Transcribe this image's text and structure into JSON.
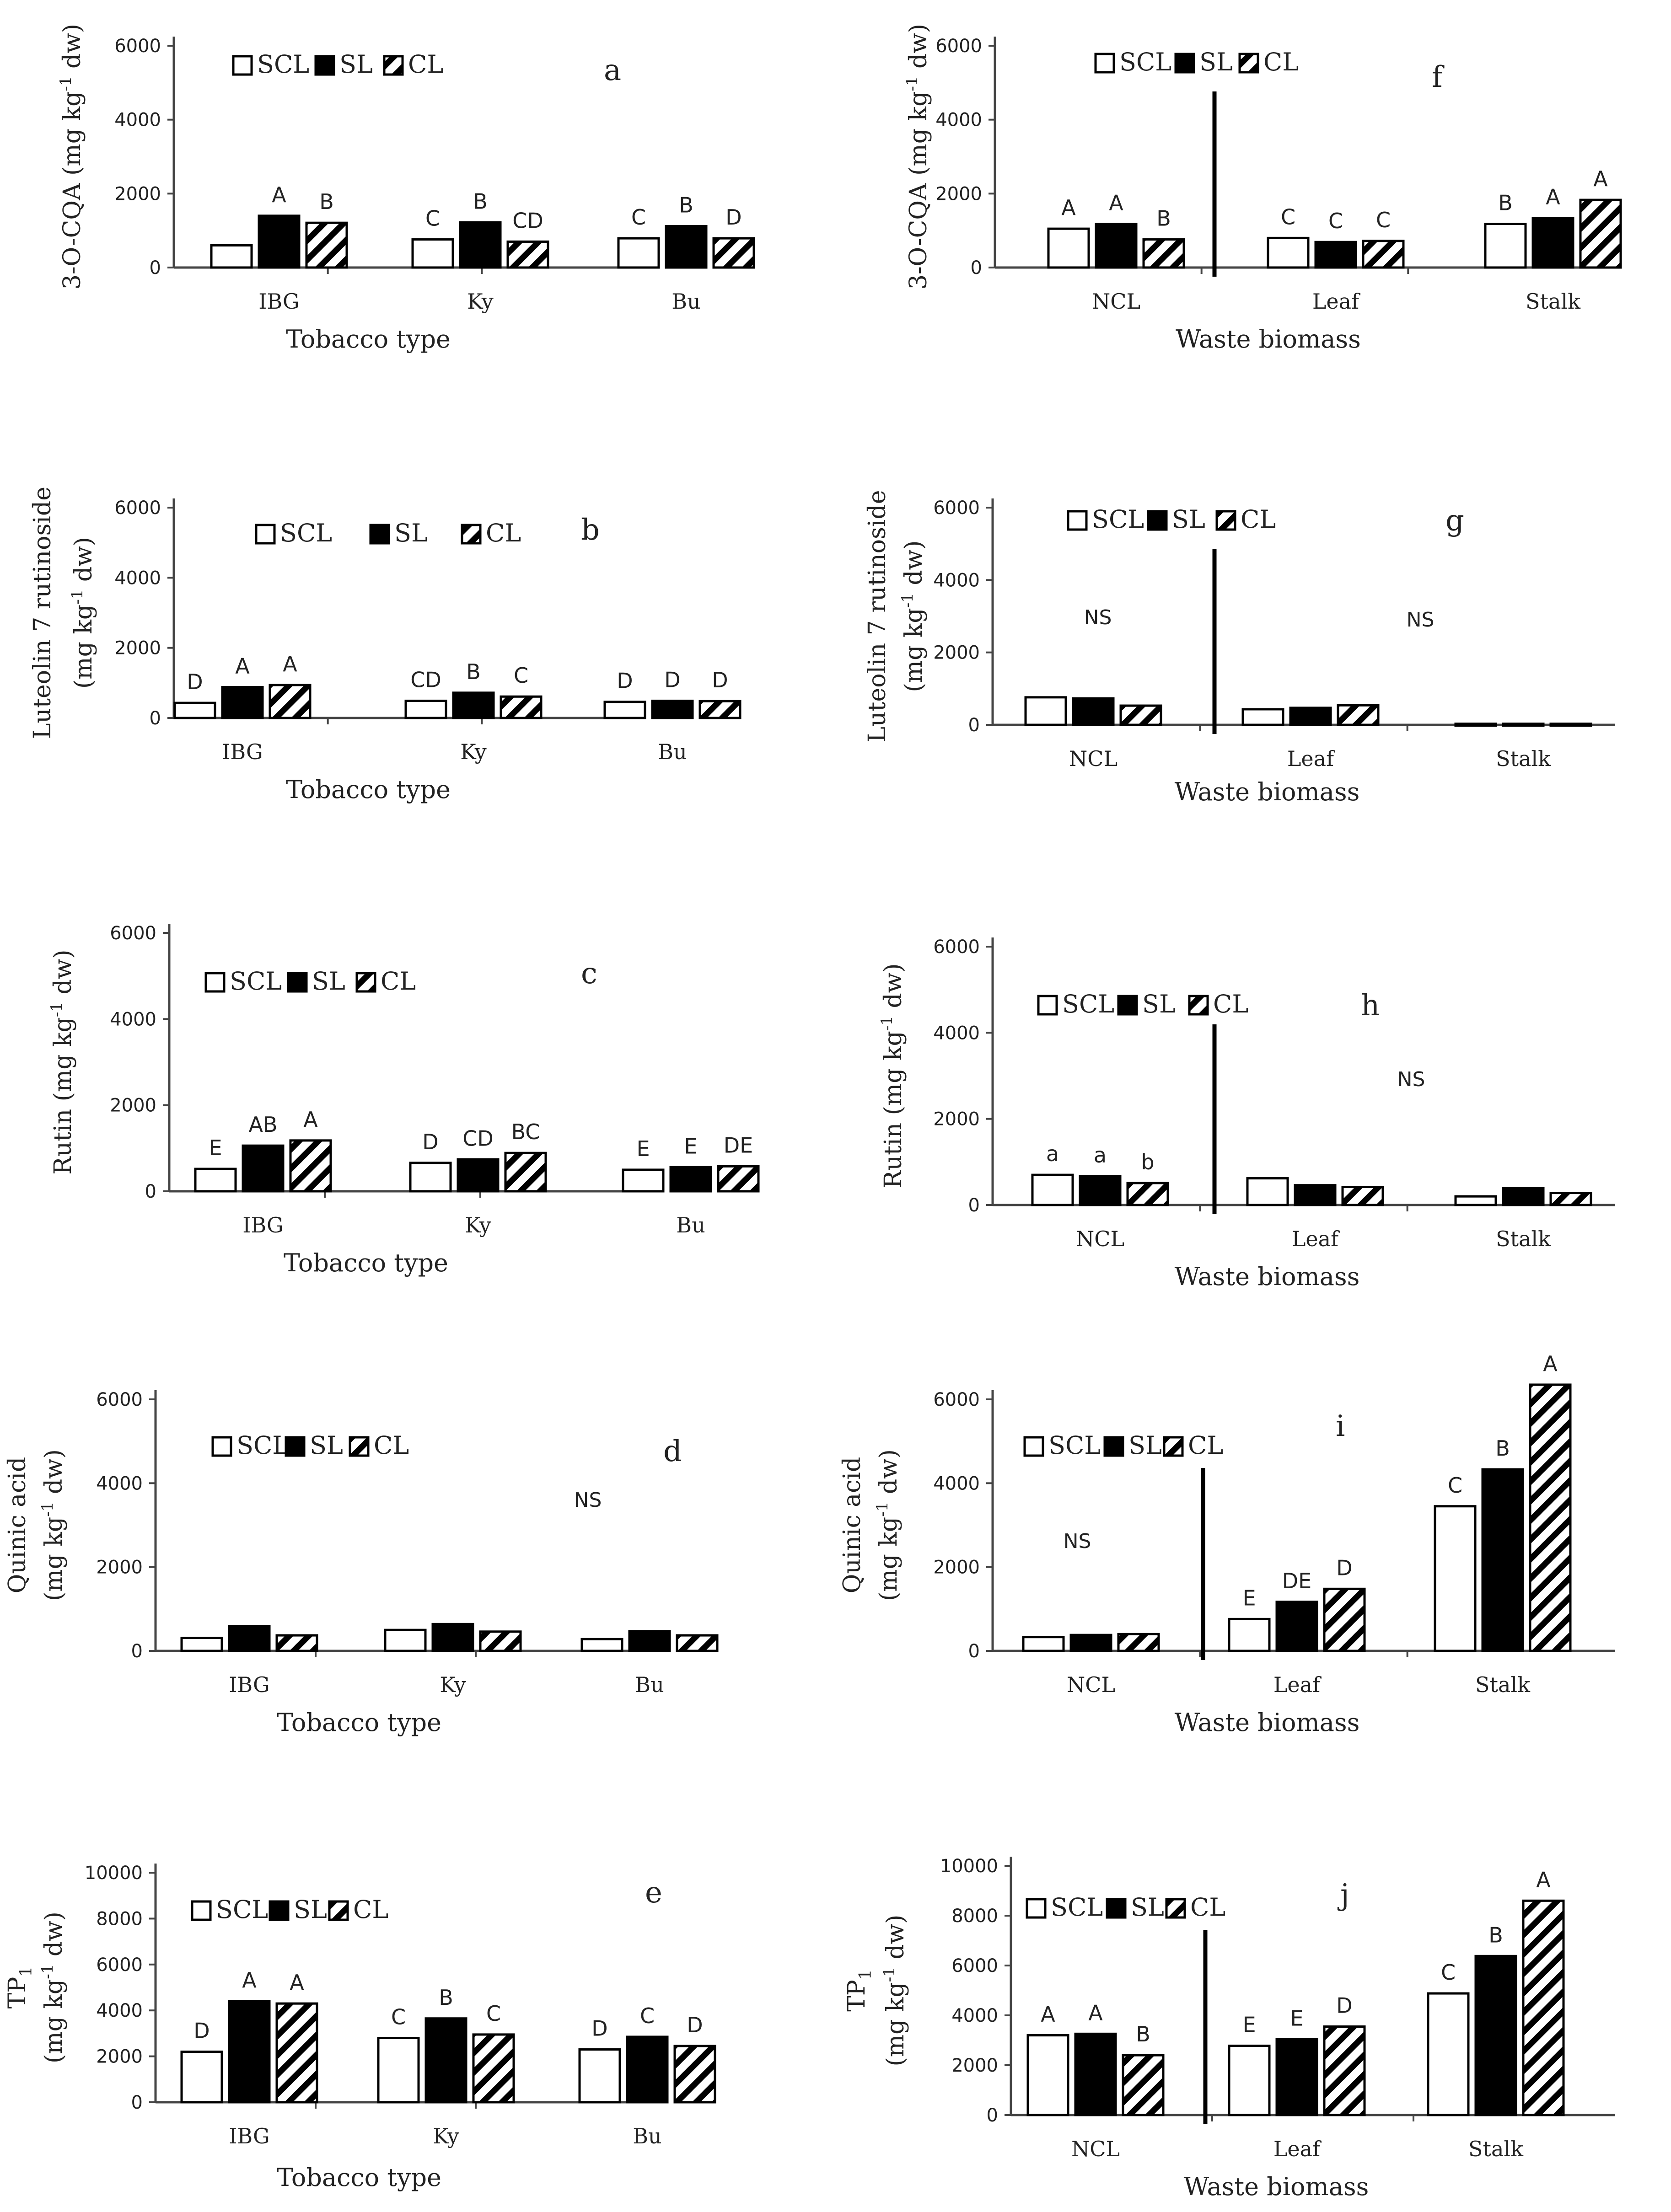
{
  "chart_data": [
    {
      "type": "bar",
      "panel_label": "a",
      "title": "",
      "xlabel": "Tobacco type",
      "ylabel_line1": "3-O-CQA (mg kg",
      "ylabel_line2": "",
      "ylabel_sup": "-1",
      "ylabel_end": " dw)",
      "ylim": [
        0,
        6000
      ],
      "yticks": [
        "0",
        "2000",
        "4000",
        "6000"
      ],
      "categories": [
        "IBG",
        "Ky",
        "Bu"
      ],
      "legend": [
        "SCL",
        "SL",
        "CL"
      ],
      "series": [
        {
          "name": "SCL",
          "values": [
            600,
            760,
            790
          ]
        },
        {
          "name": "SL",
          "values": [
            1400,
            1220,
            1120
          ]
        },
        {
          "name": "CL",
          "values": [
            1210,
            700,
            790
          ]
        }
      ],
      "letters": [
        [
          "",
          "A",
          "B"
        ],
        [
          "C",
          "B",
          "CD"
        ],
        [
          "C",
          "B",
          "D"
        ]
      ],
      "annotation": "",
      "divider_after": []
    },
    {
      "type": "bar",
      "panel_label": "b",
      "title": "",
      "xlabel": "Tobacco type",
      "ylabel_line1": "Luteolin 7 rutinoside",
      "ylabel_line2": "(mg kg",
      "ylabel_sup": "-1",
      "ylabel_end": " dw)",
      "ylim": [
        0,
        6000
      ],
      "yticks": [
        "0",
        "2000",
        "4000",
        "6000"
      ],
      "categories": [
        "IBG",
        "Ky",
        "Bu"
      ],
      "legend": [
        "SCL",
        "SL",
        "CL"
      ],
      "series": [
        {
          "name": "SCL",
          "values": [
            430,
            490,
            460
          ]
        },
        {
          "name": "SL",
          "values": [
            880,
            720,
            490
          ]
        },
        {
          "name": "CL",
          "values": [
            940,
            610,
            480
          ]
        }
      ],
      "letters": [
        [
          "D",
          "A",
          "A"
        ],
        [
          "CD",
          "B",
          "C"
        ],
        [
          "D",
          "D",
          "D"
        ]
      ],
      "annotation": "",
      "divider_after": []
    },
    {
      "type": "bar",
      "panel_label": "c",
      "title": "",
      "xlabel": "Tobacco type",
      "ylabel_line1": "Rutin (mg kg",
      "ylabel_line2": "",
      "ylabel_sup": "-1",
      "ylabel_end": " dw)",
      "ylim": [
        0,
        6000
      ],
      "yticks": [
        "0",
        "2000",
        "4000",
        "6000"
      ],
      "categories": [
        "IBG",
        "Ky",
        "Bu"
      ],
      "legend": [
        "SCL",
        "SL",
        "CL"
      ],
      "series": [
        {
          "name": "SCL",
          "values": [
            520,
            660,
            500
          ]
        },
        {
          "name": "SL",
          "values": [
            1060,
            740,
            560
          ]
        },
        {
          "name": "CL",
          "values": [
            1180,
            890,
            580
          ]
        }
      ],
      "letters": [
        [
          "E",
          "AB",
          "A"
        ],
        [
          "D",
          "CD",
          "BC"
        ],
        [
          "E",
          "E",
          "DE"
        ]
      ],
      "annotation": "",
      "divider_after": []
    },
    {
      "type": "bar",
      "panel_label": "d",
      "title": "",
      "xlabel": "Tobacco type",
      "ylabel_line1": "Quinic acid",
      "ylabel_line2": "(mg kg",
      "ylabel_sup": "-1",
      "ylabel_end": " dw)",
      "ylim": [
        0,
        6000
      ],
      "yticks": [
        "0",
        "2000",
        "4000",
        "6000"
      ],
      "categories": [
        "IBG",
        "Ky",
        "Bu"
      ],
      "legend": [
        "SCL",
        "SL",
        "CL"
      ],
      "series": [
        {
          "name": "SCL",
          "values": [
            310,
            500,
            280
          ]
        },
        {
          "name": "SL",
          "values": [
            590,
            640,
            470
          ]
        },
        {
          "name": "CL",
          "values": [
            370,
            460,
            370
          ]
        }
      ],
      "letters": [
        [
          "",
          "",
          ""
        ],
        [
          "",
          "",
          ""
        ],
        [
          "",
          "",
          ""
        ]
      ],
      "annotation": "NS",
      "divider_after": []
    },
    {
      "type": "bar",
      "panel_label": "e",
      "title": "",
      "xlabel": "Tobacco type",
      "ylabel_line1": "TP",
      "ylabel_line1_sub": "1",
      "ylabel_line2": "(mg kg",
      "ylabel_sup": "-1",
      "ylabel_end": " dw)",
      "ylim": [
        0,
        10000
      ],
      "yticks": [
        "0",
        "2000",
        "4000",
        "6000",
        "8000",
        "10000"
      ],
      "categories": [
        "IBG",
        "Ky",
        "Bu"
      ],
      "legend": [
        "SCL",
        "SL",
        "CL"
      ],
      "series": [
        {
          "name": "SCL",
          "values": [
            2200,
            2800,
            2300
          ]
        },
        {
          "name": "SL",
          "values": [
            4400,
            3650,
            2850
          ]
        },
        {
          "name": "CL",
          "values": [
            4300,
            2950,
            2450
          ]
        }
      ],
      "letters": [
        [
          "D",
          "A",
          "A"
        ],
        [
          "C",
          "B",
          "C"
        ],
        [
          "D",
          "C",
          "D"
        ]
      ],
      "annotation": "",
      "divider_after": []
    },
    {
      "type": "bar",
      "panel_label": "f",
      "title": "",
      "xlabel": "Waste biomass",
      "ylabel_line1": "3-O-CQA (mg kg",
      "ylabel_line2": "",
      "ylabel_sup": "-1",
      "ylabel_end": " dw)",
      "ylim": [
        0,
        6000
      ],
      "yticks": [
        "0",
        "2000",
        "4000",
        "6000"
      ],
      "categories": [
        "NCL",
        "Leaf",
        "Stalk"
      ],
      "legend": [
        "SCL",
        "SL",
        "CL"
      ],
      "series": [
        {
          "name": "SCL",
          "values": [
            1050,
            800,
            1180
          ]
        },
        {
          "name": "SL",
          "values": [
            1180,
            690,
            1340
          ]
        },
        {
          "name": "CL",
          "values": [
            760,
            720,
            1830
          ]
        }
      ],
      "letters": [
        [
          "A",
          "A",
          "B"
        ],
        [
          "C",
          "C",
          "C"
        ],
        [
          "B",
          "A",
          "A"
        ]
      ],
      "annotation": "",
      "divider_after": [
        0
      ]
    },
    {
      "type": "bar",
      "panel_label": "g",
      "title": "",
      "xlabel": "Waste biomass",
      "ylabel_line1": "Luteolin 7 rutinoside",
      "ylabel_line2": "(mg kg",
      "ylabel_sup": "-1",
      "ylabel_end": " dw)",
      "ylim": [
        0,
        6000
      ],
      "yticks": [
        "0",
        "2000",
        "4000",
        "6000"
      ],
      "categories": [
        "NCL",
        "Leaf",
        "Stalk"
      ],
      "legend": [
        "SCL",
        "SL",
        "CL"
      ],
      "series": [
        {
          "name": "SCL",
          "values": [
            760,
            430,
            30
          ]
        },
        {
          "name": "SL",
          "values": [
            730,
            470,
            30
          ]
        },
        {
          "name": "CL",
          "values": [
            530,
            540,
            30
          ]
        }
      ],
      "letters": [
        [
          "",
          "",
          ""
        ],
        [
          "",
          "",
          ""
        ],
        [
          "",
          "",
          ""
        ]
      ],
      "annotation": "NS",
      "annotation_ncl": "NS",
      "divider_after": [
        0
      ]
    },
    {
      "type": "bar",
      "panel_label": "h",
      "title": "",
      "xlabel": "Waste biomass",
      "ylabel_line1": "Rutin (mg kg",
      "ylabel_line2": "",
      "ylabel_sup": "-1",
      "ylabel_end": " dw)",
      "ylim": [
        0,
        6000
      ],
      "yticks": [
        "0",
        "2000",
        "4000",
        "6000"
      ],
      "categories": [
        "NCL",
        "Leaf",
        "Stalk"
      ],
      "legend": [
        "SCL",
        "SL",
        "CL"
      ],
      "series": [
        {
          "name": "SCL",
          "values": [
            700,
            620,
            200
          ]
        },
        {
          "name": "SL",
          "values": [
            670,
            460,
            390
          ]
        },
        {
          "name": "CL",
          "values": [
            510,
            420,
            280
          ]
        }
      ],
      "letters": [
        [
          "a",
          "a",
          "b"
        ],
        [
          "",
          "",
          ""
        ],
        [
          "",
          "",
          ""
        ]
      ],
      "annotation": "NS",
      "divider_after": [
        0
      ]
    },
    {
      "type": "bar",
      "panel_label": "i",
      "title": "",
      "xlabel": "Waste biomass",
      "ylabel_line1": "Quinic acid",
      "ylabel_line2": "(mg kg",
      "ylabel_sup": "-1",
      "ylabel_end": " dw)",
      "ylim": [
        0,
        6000
      ],
      "yticks": [
        "0",
        "2000",
        "4000",
        "6000"
      ],
      "categories": [
        "NCL",
        "Leaf",
        "Stalk"
      ],
      "legend": [
        "SCL",
        "SL",
        "CL"
      ],
      "series": [
        {
          "name": "SCL",
          "values": [
            330,
            760,
            3450
          ]
        },
        {
          "name": "SL",
          "values": [
            380,
            1170,
            4330
          ]
        },
        {
          "name": "CL",
          "values": [
            400,
            1480,
            6350
          ]
        }
      ],
      "letters": [
        [
          "",
          "",
          ""
        ],
        [
          "E",
          "DE",
          "D"
        ],
        [
          "C",
          "B",
          "A"
        ]
      ],
      "annotation": "NS",
      "divider_after": [
        0
      ]
    },
    {
      "type": "bar",
      "panel_label": "j",
      "title": "",
      "xlabel": "Waste biomass",
      "ylabel_line1": "TP",
      "ylabel_line1_sub": "1",
      "ylabel_line2": "(mg kg",
      "ylabel_sup": "-1",
      "ylabel_end": " dw)",
      "ylim": [
        0,
        10000
      ],
      "yticks": [
        "0",
        "2000",
        "4000",
        "6000",
        "8000",
        "10000"
      ],
      "categories": [
        "NCL",
        "Leaf",
        "Stalk"
      ],
      "legend": [
        "SCL",
        "SL",
        "CL"
      ],
      "series": [
        {
          "name": "SCL",
          "values": [
            3200,
            2780,
            4880
          ]
        },
        {
          "name": "SL",
          "values": [
            3260,
            3040,
            6380
          ]
        },
        {
          "name": "CL",
          "values": [
            2400,
            3550,
            8600
          ]
        }
      ],
      "letters": [
        [
          "A",
          "A",
          "B"
        ],
        [
          "E",
          "E",
          "D"
        ],
        [
          "C",
          "B",
          "A"
        ]
      ],
      "annotation": "",
      "divider_after": [
        0
      ]
    }
  ]
}
